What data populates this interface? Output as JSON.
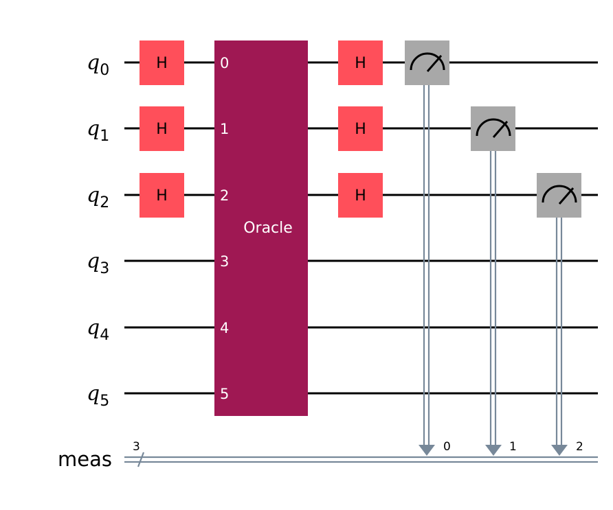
{
  "qubits": [
    {
      "name": "q",
      "index": "0"
    },
    {
      "name": "q",
      "index": "1"
    },
    {
      "name": "q",
      "index": "2"
    },
    {
      "name": "q",
      "index": "3"
    },
    {
      "name": "q",
      "index": "4"
    },
    {
      "name": "q",
      "index": "5"
    }
  ],
  "classical_register": {
    "name": "meas",
    "width": "3"
  },
  "hadamard_label": "H",
  "oracle": {
    "label": "Oracle",
    "pins": [
      "0",
      "1",
      "2",
      "3",
      "4",
      "5"
    ]
  },
  "measurements": [
    {
      "qubit": 0,
      "bit": "0"
    },
    {
      "qubit": 1,
      "bit": "1"
    },
    {
      "qubit": 2,
      "bit": "2"
    }
  ],
  "colors": {
    "hadamard": "#ff4f5a",
    "oracle": "#9f1853",
    "measure": "#a8a8a8",
    "classical_wire": "#778899",
    "quantum_wire": "#000000"
  }
}
